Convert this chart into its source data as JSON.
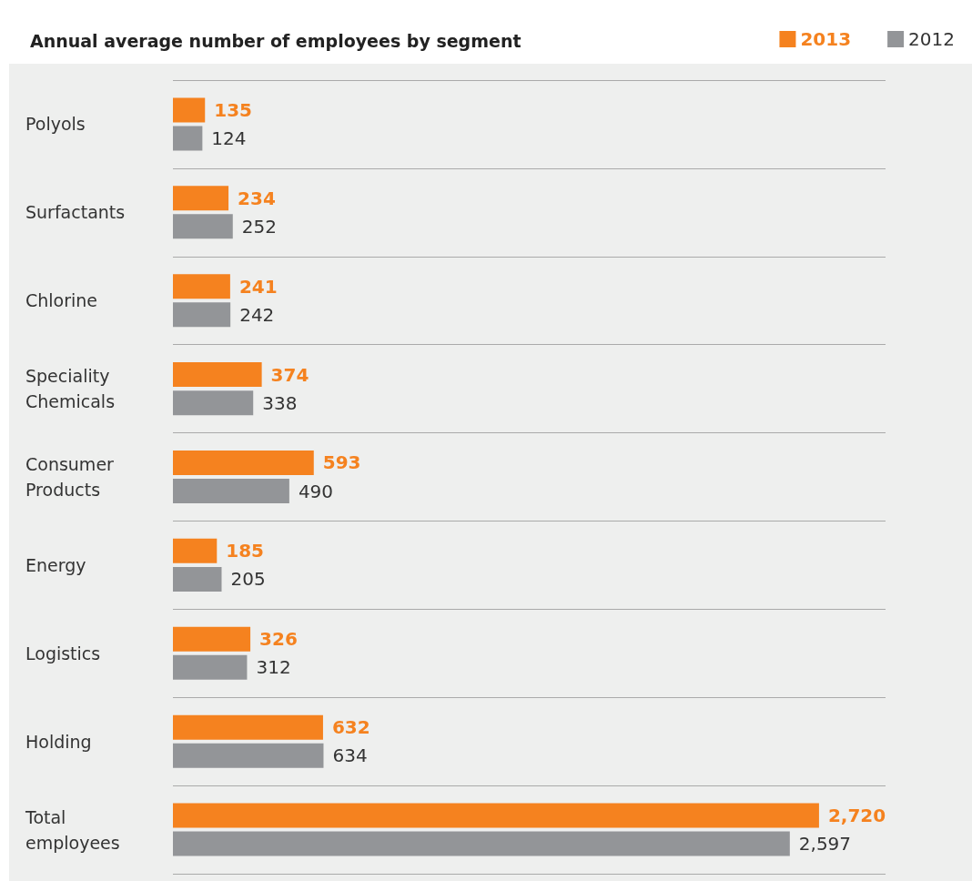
{
  "chart_data": {
    "type": "bar",
    "orientation": "horizontal",
    "title": "Annual average number of employees by segment",
    "categories": [
      "Polyols",
      "Surfactants",
      "Chlorine",
      "Speciality Chemicals",
      "Consumer Products",
      "Energy",
      "Logistics",
      "Holding",
      "Total employees"
    ],
    "series": [
      {
        "name": "2013",
        "color": "#f5821f",
        "values": [
          135,
          234,
          241,
          374,
          593,
          185,
          326,
          632,
          2720
        ],
        "value_labels": [
          "135",
          "234",
          "241",
          "374",
          "593",
          "185",
          "326",
          "632",
          "2,720"
        ]
      },
      {
        "name": "2012",
        "color": "#939598",
        "values": [
          124,
          252,
          242,
          338,
          490,
          205,
          312,
          634,
          2597
        ],
        "value_labels": [
          "124",
          "252",
          "242",
          "338",
          "490",
          "205",
          "312",
          "634",
          "2,597"
        ]
      }
    ],
    "grid": "y",
    "legend": "top right"
  }
}
